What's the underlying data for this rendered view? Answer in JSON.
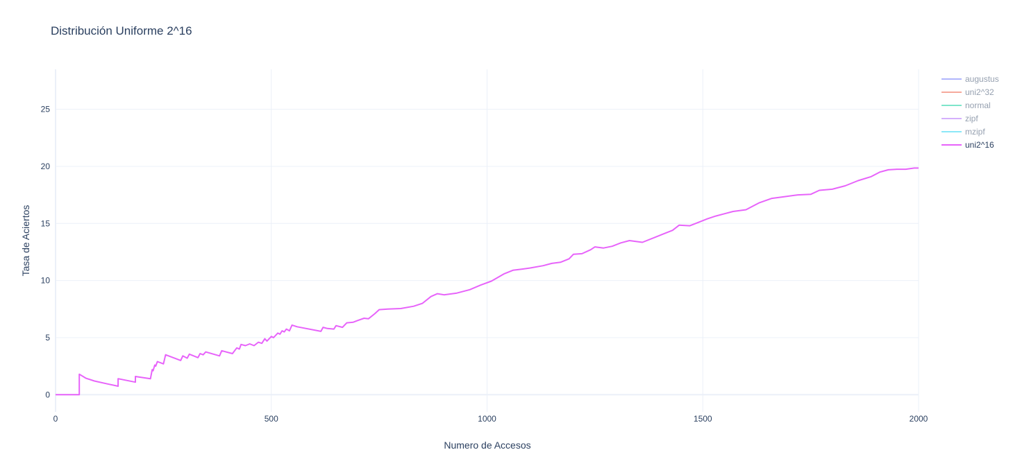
{
  "chart_data": {
    "type": "line",
    "title": "Distribución Uniforme 2^16",
    "xlabel": "Numero de Accesos",
    "ylabel": "Tasa de Aciertos",
    "xlim": [
      0,
      2000
    ],
    "ylim": [
      -1.5,
      28.5
    ],
    "xticks": [
      0,
      500,
      1000,
      1500,
      2000
    ],
    "yticks": [
      0,
      5,
      10,
      15,
      20,
      25
    ],
    "grid": true,
    "legend_position": "top-right",
    "series": [
      {
        "name": "augustus",
        "color": "#636efa",
        "visible": false,
        "x": [],
        "y": []
      },
      {
        "name": "uni2^32",
        "color": "#ef553b",
        "visible": false,
        "x": [],
        "y": []
      },
      {
        "name": "normal",
        "color": "#00cc96",
        "visible": false,
        "x": [],
        "y": []
      },
      {
        "name": "zipf",
        "color": "#ab63fa",
        "visible": false,
        "x": [],
        "y": []
      },
      {
        "name": "mzipf",
        "color": "#19d3f3",
        "visible": false,
        "x": [],
        "y": []
      },
      {
        "name": "uni2^16",
        "color": "#e763fa",
        "visible": true,
        "x": [
          0,
          55,
          55,
          70,
          90,
          120,
          145,
          145,
          185,
          185,
          220,
          224,
          226,
          230,
          232,
          236,
          250,
          255,
          290,
          295,
          305,
          310,
          330,
          335,
          342,
          348,
          380,
          385,
          390,
          410,
          420,
          426,
          430,
          440,
          450,
          460,
          470,
          478,
          485,
          490,
          500,
          505,
          515,
          520,
          525,
          530,
          535,
          542,
          548,
          560,
          615,
          620,
          630,
          645,
          650,
          665,
          675,
          690,
          700,
          715,
          725,
          740,
          750,
          770,
          800,
          830,
          850,
          870,
          885,
          900,
          930,
          960,
          985,
          1010,
          1040,
          1060,
          1080,
          1100,
          1130,
          1150,
          1170,
          1190,
          1200,
          1220,
          1240,
          1250,
          1270,
          1290,
          1310,
          1330,
          1360,
          1390,
          1410,
          1430,
          1445,
          1470,
          1490,
          1510,
          1530,
          1550,
          1570,
          1600,
          1630,
          1660,
          1690,
          1720,
          1750,
          1770,
          1800,
          1830,
          1860,
          1890,
          1910,
          1930,
          1950,
          1970,
          1990,
          2000
        ],
        "y": [
          0,
          0,
          1.8,
          1.45,
          1.2,
          0.95,
          0.75,
          1.4,
          1.1,
          1.6,
          1.4,
          2.2,
          2.1,
          2.6,
          2.5,
          2.9,
          2.7,
          3.5,
          3.0,
          3.4,
          3.2,
          3.55,
          3.25,
          3.6,
          3.5,
          3.75,
          3.4,
          3.85,
          3.8,
          3.6,
          4.1,
          4.0,
          4.4,
          4.3,
          4.45,
          4.3,
          4.6,
          4.5,
          4.9,
          4.7,
          5.1,
          5.0,
          5.4,
          5.3,
          5.6,
          5.5,
          5.75,
          5.6,
          6.1,
          5.95,
          5.55,
          5.9,
          5.8,
          5.75,
          6.05,
          5.9,
          6.3,
          6.35,
          6.5,
          6.7,
          6.65,
          7.1,
          7.45,
          7.5,
          7.55,
          7.75,
          8.0,
          8.6,
          8.85,
          8.75,
          8.9,
          9.2,
          9.6,
          9.95,
          10.6,
          10.9,
          11.0,
          11.1,
          11.3,
          11.5,
          11.6,
          11.9,
          12.3,
          12.35,
          12.7,
          12.95,
          12.85,
          13.0,
          13.3,
          13.5,
          13.35,
          13.8,
          14.1,
          14.4,
          14.85,
          14.8,
          15.1,
          15.4,
          15.65,
          15.85,
          16.05,
          16.2,
          16.8,
          17.2,
          17.35,
          17.5,
          17.55,
          17.9,
          18.0,
          18.3,
          18.75,
          19.1,
          19.5,
          19.7,
          19.75,
          19.75,
          19.85,
          19.85
        ]
      }
    ]
  }
}
